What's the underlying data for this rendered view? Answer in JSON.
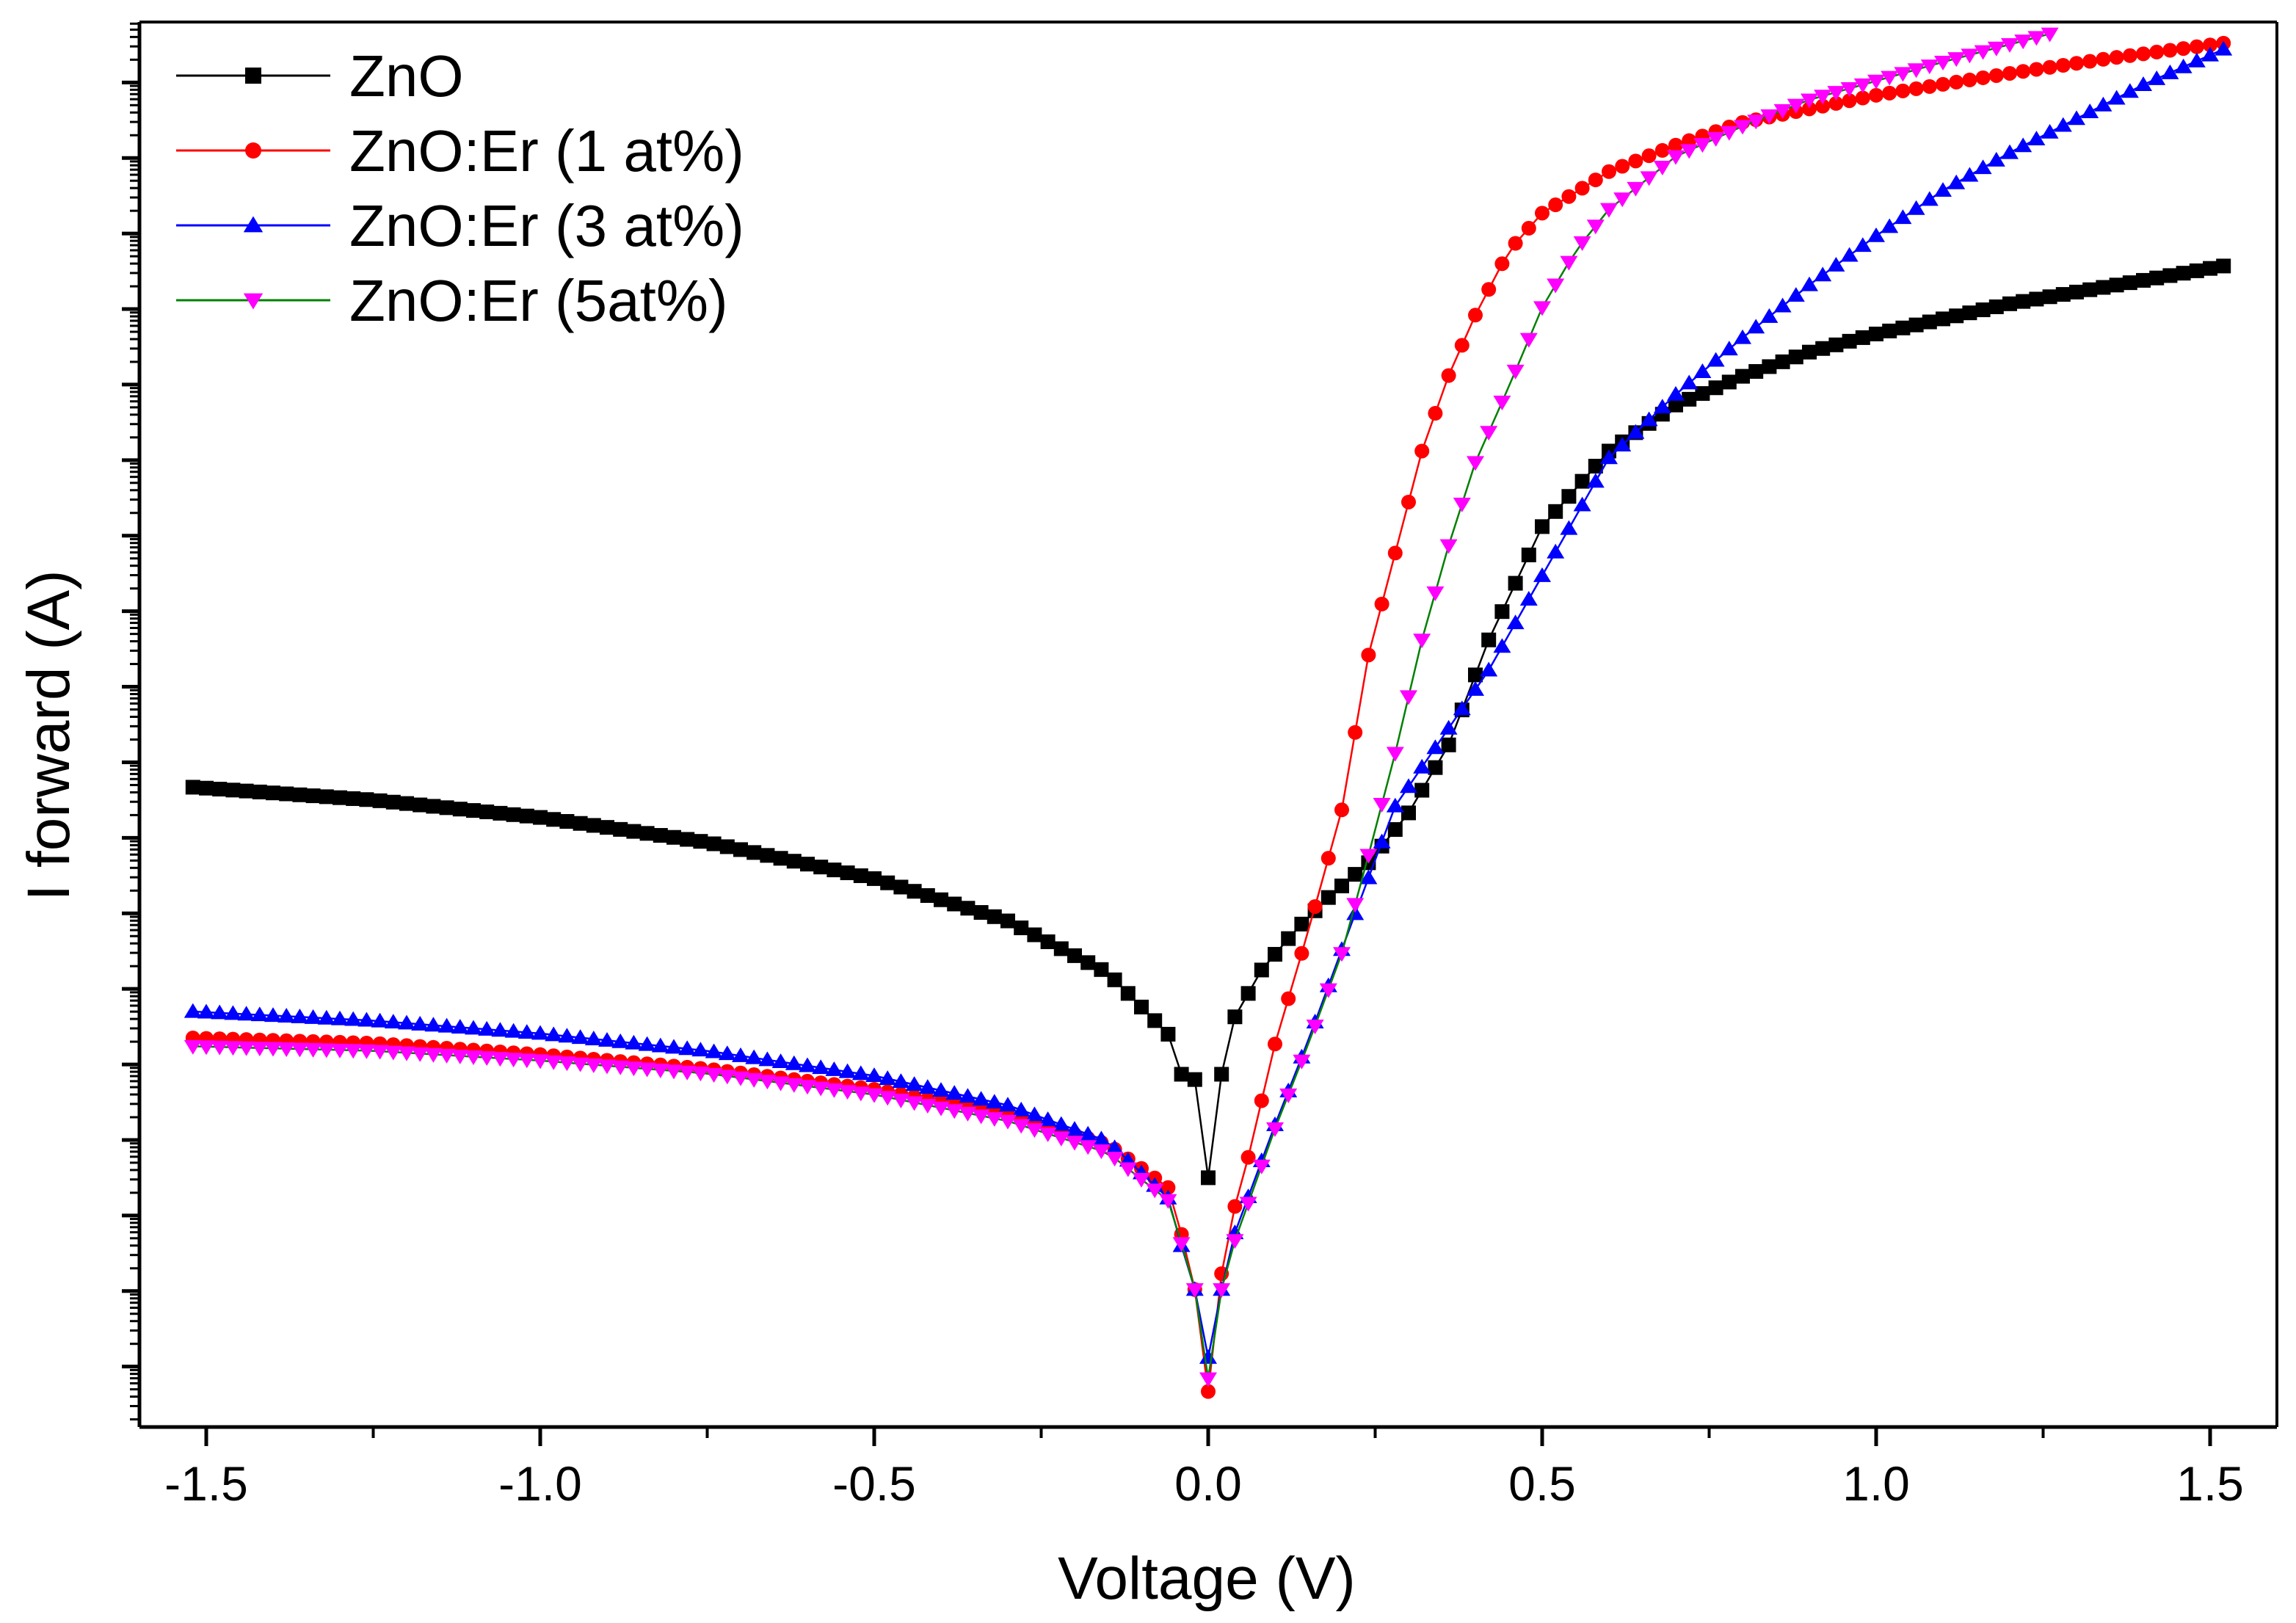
{
  "chart_data": {
    "type": "line",
    "title": "",
    "xlabel": "Voltage (V)",
    "ylabel": "I forward (A)",
    "xlim": [
      -1.6,
      1.6
    ],
    "x_ticks": [
      -1.5,
      -1.0,
      -0.5,
      0.0,
      0.5,
      1.0,
      1.5
    ],
    "x_tick_labels": [
      "-1.5",
      "-1.0",
      "-0.5",
      "0.0",
      "0.5",
      "1.0",
      "1.5"
    ],
    "x_minor_step": 0.25,
    "ylim": [
      -0.08,
      1.78
    ],
    "y_scale": "log",
    "y_tick_labels_shown": false,
    "y_major_ticks": [
      0.0,
      0.1,
      0.2,
      0.3,
      0.4,
      0.5,
      0.6,
      0.7,
      0.8,
      0.9,
      1.0,
      1.1,
      1.2,
      1.3,
      1.4,
      1.5,
      1.6,
      1.7
    ],
    "y_minor_per_decade": 8,
    "y_values_note": "y values are positions on the unlabeled logarithmic axis, normalized so 0 = lowest major tick and 1.7 = highest major tick",
    "grid": false,
    "legend_position": "top-left",
    "series": [
      {
        "name": "ZnO",
        "color": "#000000",
        "line_color": "#000000",
        "marker": "square",
        "step": 0.02,
        "anchors": [
          [
            -1.52,
            0.767
          ],
          [
            -1.25,
            0.75
          ],
          [
            -1.0,
            0.727
          ],
          [
            -0.75,
            0.694
          ],
          [
            -0.5,
            0.646
          ],
          [
            -0.3,
            0.59
          ],
          [
            -0.15,
            0.521
          ],
          [
            -0.06,
            0.44
          ],
          [
            -0.04,
            0.387
          ],
          [
            -0.02,
            0.38
          ],
          [
            0.0,
            0.25
          ],
          [
            0.02,
            0.387
          ],
          [
            0.04,
            0.463
          ],
          [
            0.08,
            0.525
          ],
          [
            0.13,
            0.577
          ],
          [
            0.18,
            0.621
          ],
          [
            0.24,
            0.667
          ],
          [
            0.3,
            0.733
          ],
          [
            0.36,
            0.823
          ],
          [
            0.42,
            0.962
          ],
          [
            0.5,
            1.112
          ],
          [
            0.6,
            1.212
          ],
          [
            0.7,
            1.273
          ],
          [
            0.8,
            1.311
          ],
          [
            0.9,
            1.343
          ],
          [
            1.0,
            1.367
          ],
          [
            1.2,
            1.407
          ],
          [
            1.4,
            1.438
          ],
          [
            1.52,
            1.457
          ]
        ]
      },
      {
        "name": "ZnO:Er (1 at%)",
        "color": "#ff0000",
        "line_color": "#ff0000",
        "marker": "circle",
        "step": 0.02,
        "anchors": [
          [
            -1.52,
            0.435
          ],
          [
            -1.25,
            0.428
          ],
          [
            -1.0,
            0.413
          ],
          [
            -0.75,
            0.394
          ],
          [
            -0.5,
            0.367
          ],
          [
            -0.3,
            0.335
          ],
          [
            -0.15,
            0.294
          ],
          [
            -0.06,
            0.237
          ],
          [
            -0.04,
            0.175
          ],
          [
            -0.02,
            0.102
          ],
          [
            0.0,
            -0.033
          ],
          [
            0.02,
            0.123
          ],
          [
            0.04,
            0.212
          ],
          [
            0.06,
            0.277
          ],
          [
            0.1,
            0.427
          ],
          [
            0.15,
            0.577
          ],
          [
            0.2,
            0.737
          ],
          [
            0.24,
            0.942
          ],
          [
            0.28,
            1.077
          ],
          [
            0.32,
            1.212
          ],
          [
            0.36,
            1.312
          ],
          [
            0.4,
            1.392
          ],
          [
            0.45,
            1.477
          ],
          [
            0.5,
            1.527
          ],
          [
            0.6,
            1.582
          ],
          [
            0.7,
            1.617
          ],
          [
            0.8,
            1.647
          ],
          [
            1.0,
            1.683
          ],
          [
            1.2,
            1.712
          ],
          [
            1.35,
            1.732
          ],
          [
            1.52,
            1.752
          ]
        ]
      },
      {
        "name": "ZnO:Er (3 at%)",
        "color": "#0000ff",
        "line_color": "#0000ff",
        "marker": "triangle-up",
        "step": 0.02,
        "anchors": [
          [
            -1.52,
            0.47
          ],
          [
            -1.25,
            0.458
          ],
          [
            -1.0,
            0.441
          ],
          [
            -0.75,
            0.418
          ],
          [
            -0.5,
            0.385
          ],
          [
            -0.3,
            0.346
          ],
          [
            -0.15,
            0.298
          ],
          [
            -0.06,
            0.223
          ],
          [
            -0.04,
            0.16
          ],
          [
            -0.02,
            0.102
          ],
          [
            0.0,
            0.012
          ],
          [
            0.02,
            0.102
          ],
          [
            0.04,
            0.177
          ],
          [
            0.1,
            0.32
          ],
          [
            0.15,
            0.432
          ],
          [
            0.2,
            0.552
          ],
          [
            0.28,
            0.742
          ],
          [
            0.36,
            0.845
          ],
          [
            0.42,
            0.922
          ],
          [
            0.5,
            1.047
          ],
          [
            0.6,
            1.203
          ],
          [
            0.7,
            1.287
          ],
          [
            0.8,
            1.362
          ],
          [
            0.9,
            1.432
          ],
          [
            1.0,
            1.497
          ],
          [
            1.1,
            1.557
          ],
          [
            1.2,
            1.607
          ],
          [
            1.3,
            1.652
          ],
          [
            1.4,
            1.697
          ],
          [
            1.52,
            1.744
          ]
        ]
      },
      {
        "name": "ZnO:Er (5at%)",
        "color": "#ff00ff",
        "line_color": "#008000",
        "marker": "triangle-down",
        "step": 0.02,
        "anchors": [
          [
            -1.52,
            0.424
          ],
          [
            -1.25,
            0.418
          ],
          [
            -1.0,
            0.405
          ],
          [
            -0.75,
            0.388
          ],
          [
            -0.5,
            0.36
          ],
          [
            -0.3,
            0.325
          ],
          [
            -0.15,
            0.283
          ],
          [
            -0.06,
            0.22
          ],
          [
            -0.04,
            0.163
          ],
          [
            -0.02,
            0.102
          ],
          [
            0.0,
            -0.016
          ],
          [
            0.02,
            0.102
          ],
          [
            0.04,
            0.167
          ],
          [
            0.1,
            0.315
          ],
          [
            0.15,
            0.427
          ],
          [
            0.2,
            0.547
          ],
          [
            0.24,
            0.677
          ],
          [
            0.28,
            0.812
          ],
          [
            0.32,
            0.962
          ],
          [
            0.36,
            1.087
          ],
          [
            0.4,
            1.197
          ],
          [
            0.45,
            1.297
          ],
          [
            0.5,
            1.402
          ],
          [
            0.55,
            1.477
          ],
          [
            0.6,
            1.532
          ],
          [
            0.7,
            1.602
          ],
          [
            0.8,
            1.642
          ],
          [
            0.9,
            1.677
          ],
          [
            1.0,
            1.702
          ],
          [
            1.1,
            1.727
          ],
          [
            1.25,
            1.762
          ]
        ]
      }
    ]
  }
}
